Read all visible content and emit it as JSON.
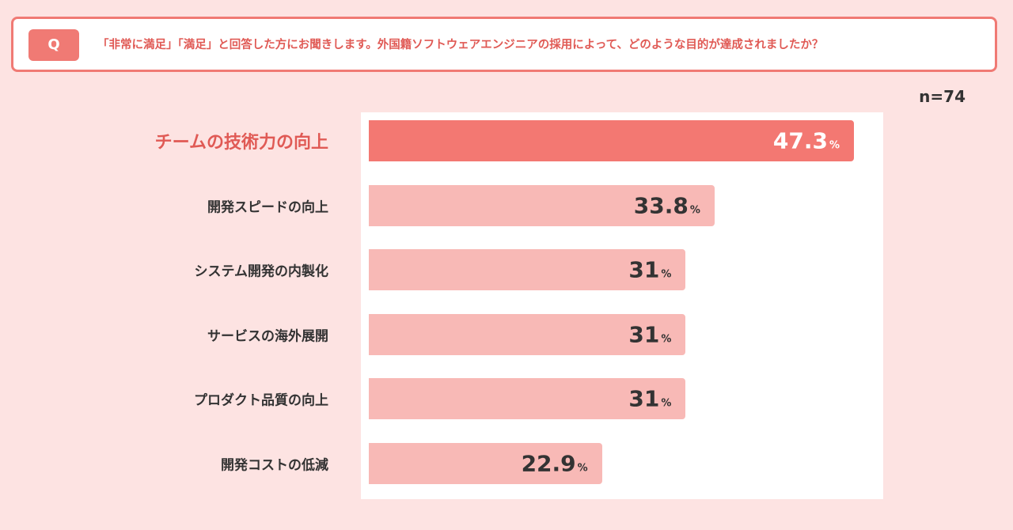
{
  "question": {
    "badge": "Q",
    "text": "「非常に満足」「満足」と回答した方にお聞きします。外国籍ソフトウェアエンジニアの採用によって、どのような目的が達成されましたか？"
  },
  "sample_size": "n=74",
  "chart_data": {
    "type": "bar",
    "orientation": "horizontal",
    "title": "",
    "xlabel": "",
    "ylabel": "",
    "categories": [
      "チームの技術力の向上",
      "開発スピードの向上",
      "システム開発の内製化",
      "サービスの海外展開",
      "プロダクト品質の向上",
      "開発コストの低減"
    ],
    "values": [
      47.3,
      33.8,
      31,
      31,
      31,
      22.9
    ],
    "value_labels": [
      "47.3",
      "33.8",
      "31",
      "31",
      "31",
      "22.9"
    ],
    "unit": "%",
    "highlight_index": 0,
    "xlim": [
      0,
      50
    ],
    "gridlines": [
      15,
      30,
      45
    ],
    "grid": true,
    "colors": {
      "highlight": "#f37872",
      "bar": "#f8b9b6",
      "accent": "#e05a55",
      "background": "#fde3e2"
    }
  }
}
